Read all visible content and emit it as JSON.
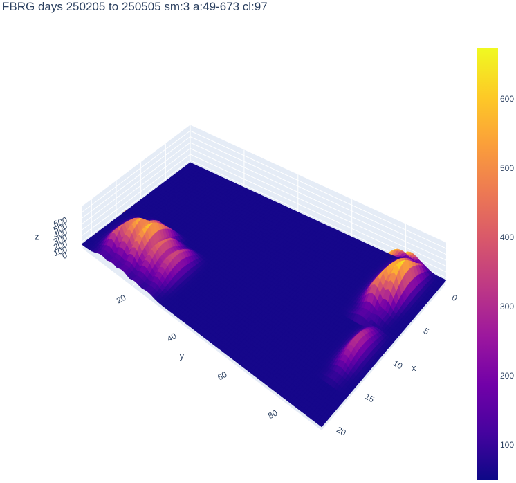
{
  "chart_data": {
    "type": "surface",
    "title": "FBRG days 250205 to 250505   sm:3 a:49-673 cl:97",
    "x_axis": {
      "label": "x",
      "ticks": [
        0,
        5,
        10,
        15,
        20
      ],
      "range": [
        0,
        22
      ]
    },
    "y_axis": {
      "label": "y",
      "ticks": [
        20,
        40,
        60,
        80
      ],
      "range": [
        0,
        95
      ]
    },
    "z_axis": {
      "label": "z",
      "ticks": [
        0,
        100,
        200,
        300,
        400,
        500,
        600
      ],
      "range": [
        0,
        700
      ]
    },
    "colorbar": {
      "ticks": [
        100,
        200,
        300,
        400,
        500,
        600
      ],
      "range": [
        49,
        673
      ],
      "colorscale": [
        "#0d0887",
        "#46039f",
        "#7201a8",
        "#9c179e",
        "#bd3786",
        "#d8576b",
        "#ed7953",
        "#fb9f3a",
        "#fdca26",
        "#f0f921"
      ]
    },
    "surface": {
      "base_level": 60,
      "ridges": [
        {
          "y_center": 8,
          "y_width": 3,
          "x_from": 13,
          "x_to": 22,
          "peak": 560
        },
        {
          "y_center": 12,
          "y_width": 3,
          "x_from": 12,
          "x_to": 22,
          "peak": 600
        },
        {
          "y_center": 16,
          "y_width": 3,
          "x_from": 12,
          "x_to": 22,
          "peak": 640
        },
        {
          "y_center": 21,
          "y_width": 3,
          "x_from": 13,
          "x_to": 22,
          "peak": 450
        },
        {
          "y_center": 26,
          "y_width": 3,
          "x_from": 13,
          "x_to": 22,
          "peak": 380
        },
        {
          "y_center": 82,
          "y_width": 3.5,
          "x_from": 0,
          "x_to": 9,
          "peak": 660
        },
        {
          "y_center": 86,
          "y_width": 3,
          "x_from": 0,
          "x_to": 8,
          "peak": 673
        },
        {
          "y_center": 88,
          "y_width": 3,
          "x_from": 9,
          "x_to": 17,
          "peak": 320
        }
      ]
    }
  }
}
